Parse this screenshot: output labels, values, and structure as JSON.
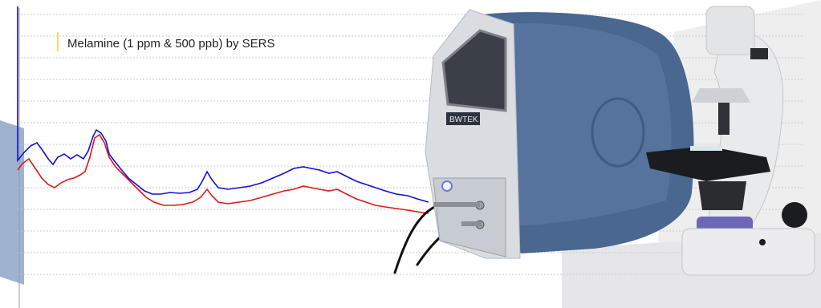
{
  "caption": {
    "text": "Melamine (1 ppm & 500 ppb) by SERS"
  },
  "device": {
    "brand_text": "BWTEK"
  },
  "colors": {
    "spectrum_1ppm": "#1010d8",
    "spectrum_500ppb": "#e01818",
    "grid_line": "#c9c9d6",
    "backdrop_shape": "#8ea6c8",
    "device_body": "#4a6790",
    "device_bezel": "#d9dde2",
    "microscope_body": "#e9eaec"
  }
}
